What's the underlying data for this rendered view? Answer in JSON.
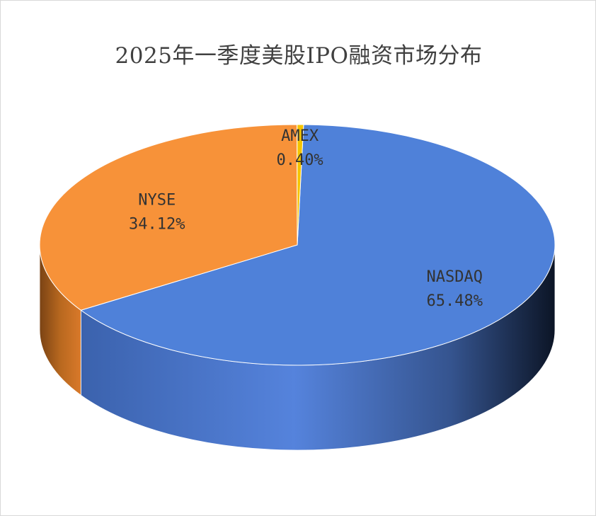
{
  "chart_data": {
    "type": "pie",
    "title": "2025年一季度美股IPO融资市场分布",
    "categories": [
      "NASDAQ",
      "NYSE",
      "AMEX"
    ],
    "values": [
      65.48,
      34.12,
      0.4
    ],
    "labels": [
      "65.48%",
      "34.12%",
      "0.40%"
    ],
    "colors": [
      "#4f81d9",
      "#f79239",
      "#f5c400"
    ],
    "style": "3d",
    "legend": "none"
  }
}
